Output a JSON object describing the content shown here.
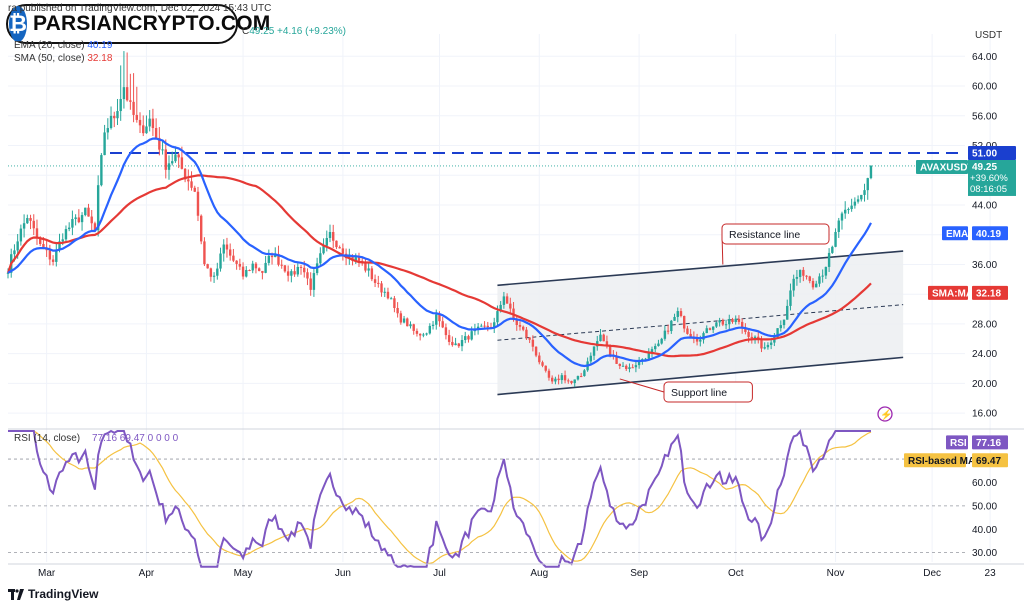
{
  "header": {
    "published_prefix": "ra",
    "published": "published on TradingView.com, Dec 02, 2024 15:43 UTC",
    "price_prefix": "C",
    "price_close": "49.25",
    "price_change": "+4.16 (+9.23%)",
    "ema_label": "EMA (20, close)",
    "ema_value": "40.19",
    "sma_label": "SMA (50, close)",
    "sma_value": "32.18",
    "currency": "USDT"
  },
  "logo": {
    "text": "PARSIANCRYPTO.COM",
    "icon": "bitcoin-icon"
  },
  "footer": {
    "brand": "TradingView",
    "icon": "tradingview-logo-icon"
  },
  "colors": {
    "up": "#26a69a",
    "down": "#ef5350",
    "ema": "#2962ff",
    "sma": "#e53935",
    "rsi": "#7e57c2",
    "rsi_ma": "#f5c242",
    "channel_fill": "#eceef1",
    "level": "#1a3fcf"
  },
  "chart_data": [
    {
      "type": "candlestick",
      "symbol": "AVAXUSDT",
      "ylim": [
        14,
        67
      ],
      "yticks": [
        "64.00",
        "60.00",
        "56.00",
        "52.00",
        "48.00",
        "44.00",
        "40.00",
        "36.00",
        "32.00",
        "28.00",
        "24.00",
        "20.00",
        "16.00"
      ],
      "xticks": [
        "Mar",
        "Apr",
        "May",
        "Jun",
        "Jul",
        "Aug",
        "Sep",
        "Oct",
        "Nov",
        "Dec",
        "23"
      ],
      "anchors": [
        {
          "d": 0,
          "p": 35.5
        },
        {
          "d": 3,
          "p": 39.5
        },
        {
          "d": 6,
          "p": 42.5
        },
        {
          "d": 10,
          "p": 38.5
        },
        {
          "d": 14,
          "p": 36.5
        },
        {
          "d": 17,
          "p": 40
        },
        {
          "d": 20,
          "p": 41.5
        },
        {
          "d": 24,
          "p": 43
        },
        {
          "d": 27,
          "p": 40.5
        },
        {
          "d": 28,
          "p": 46
        },
        {
          "d": 30,
          "p": 54
        },
        {
          "d": 33,
          "p": 56
        },
        {
          "d": 36,
          "p": 60
        },
        {
          "d": 38,
          "p": 57
        },
        {
          "d": 41,
          "p": 54
        },
        {
          "d": 44,
          "p": 55.5
        },
        {
          "d": 47,
          "p": 52
        },
        {
          "d": 49,
          "p": 49.5
        },
        {
          "d": 52,
          "p": 50.5
        },
        {
          "d": 55,
          "p": 48
        },
        {
          "d": 58,
          "p": 46
        },
        {
          "d": 61,
          "p": 36
        },
        {
          "d": 64,
          "p": 34
        },
        {
          "d": 67,
          "p": 38.5
        },
        {
          "d": 70,
          "p": 36.5
        },
        {
          "d": 73,
          "p": 34.5
        },
        {
          "d": 76,
          "p": 36
        },
        {
          "d": 79,
          "p": 35
        },
        {
          "d": 82,
          "p": 37.5
        },
        {
          "d": 85,
          "p": 36
        },
        {
          "d": 88,
          "p": 34.5
        },
        {
          "d": 91,
          "p": 36
        },
        {
          "d": 94,
          "p": 33
        },
        {
          "d": 97,
          "p": 37
        },
        {
          "d": 100,
          "p": 40
        },
        {
          "d": 103,
          "p": 38.5
        },
        {
          "d": 106,
          "p": 37
        },
        {
          "d": 109,
          "p": 36.5
        },
        {
          "d": 112,
          "p": 35
        },
        {
          "d": 115,
          "p": 33
        },
        {
          "d": 118,
          "p": 32
        },
        {
          "d": 121,
          "p": 29
        },
        {
          "d": 124,
          "p": 28
        },
        {
          "d": 127,
          "p": 26.5
        },
        {
          "d": 130,
          "p": 27
        },
        {
          "d": 133,
          "p": 29
        },
        {
          "d": 136,
          "p": 26.5
        },
        {
          "d": 139,
          "p": 25
        },
        {
          "d": 142,
          "p": 26
        },
        {
          "d": 145,
          "p": 27
        },
        {
          "d": 148,
          "p": 27.5
        },
        {
          "d": 151,
          "p": 28
        },
        {
          "d": 154,
          "p": 32
        },
        {
          "d": 157,
          "p": 28.5
        },
        {
          "d": 160,
          "p": 27
        },
        {
          "d": 163,
          "p": 25
        },
        {
          "d": 166,
          "p": 22
        },
        {
          "d": 169,
          "p": 20
        },
        {
          "d": 172,
          "p": 21
        },
        {
          "d": 175,
          "p": 20
        },
        {
          "d": 178,
          "p": 21
        },
        {
          "d": 181,
          "p": 24
        },
        {
          "d": 184,
          "p": 26.5
        },
        {
          "d": 187,
          "p": 24
        },
        {
          "d": 190,
          "p": 22.5
        },
        {
          "d": 193,
          "p": 22
        },
        {
          "d": 196,
          "p": 23
        },
        {
          "d": 199,
          "p": 24
        },
        {
          "d": 202,
          "p": 25
        },
        {
          "d": 205,
          "p": 27.5
        },
        {
          "d": 208,
          "p": 29.5
        },
        {
          "d": 211,
          "p": 27
        },
        {
          "d": 214,
          "p": 26
        },
        {
          "d": 217,
          "p": 27
        },
        {
          "d": 220,
          "p": 28.5
        },
        {
          "d": 223,
          "p": 28
        },
        {
          "d": 226,
          "p": 28.5
        },
        {
          "d": 229,
          "p": 27
        },
        {
          "d": 232,
          "p": 26
        },
        {
          "d": 235,
          "p": 24.5
        },
        {
          "d": 238,
          "p": 26.5
        },
        {
          "d": 241,
          "p": 29
        },
        {
          "d": 244,
          "p": 34
        },
        {
          "d": 247,
          "p": 35
        },
        {
          "d": 250,
          "p": 33.5
        },
        {
          "d": 253,
          "p": 35
        },
        {
          "d": 256,
          "p": 38
        },
        {
          "d": 258,
          "p": 42
        },
        {
          "d": 261,
          "p": 43
        },
        {
          "d": 264,
          "p": 45
        },
        {
          "d": 266,
          "p": 46
        },
        {
          "d": 268,
          "p": 49.25
        }
      ],
      "ema": {
        "name": "EMA",
        "value": "40.19"
      },
      "sma": {
        "name": "SMA:MA",
        "value": "32.18"
      },
      "current": {
        "symbol": "AVAXUSDT",
        "price": "49.25",
        "change": "+39.60%",
        "countdown": "08:16:05"
      },
      "level": {
        "value": 51,
        "label": "51.00"
      },
      "channel": {
        "upper": [
          {
            "d": 152,
            "p": 33.2
          },
          {
            "d": 278,
            "p": 37.8
          }
        ],
        "lower": [
          {
            "d": 152,
            "p": 18.5
          },
          {
            "d": 278,
            "p": 23.5
          }
        ],
        "mid": [
          {
            "d": 152,
            "p": 25.8
          },
          {
            "d": 278,
            "p": 30.6
          }
        ]
      },
      "annotations": [
        {
          "text": "Resistance line",
          "points_to": {
            "d": 222,
            "p": 36.0
          }
        },
        {
          "text": "Support line",
          "points_to": {
            "d": 190,
            "p": 20.6
          }
        }
      ]
    },
    {
      "type": "line",
      "title": "RSI (14, close)",
      "header_values": "77.16   69.47   0   0   0   0",
      "ylim": [
        26,
        82
      ],
      "yticks": [
        "70.00",
        "60.00",
        "50.00",
        "40.00",
        "30.00"
      ],
      "guides": [
        70,
        50,
        30
      ],
      "series": [
        {
          "name": "RSI",
          "value": "77.16"
        },
        {
          "name": "RSI-based MA",
          "value": "69.47"
        }
      ]
    }
  ]
}
